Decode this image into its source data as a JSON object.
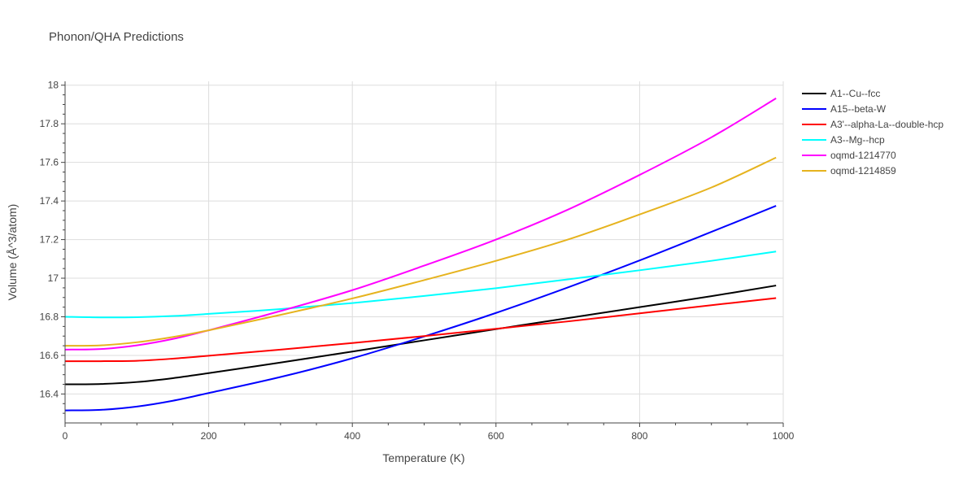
{
  "chart_data": {
    "type": "line",
    "title": "Phonon/QHA Predictions",
    "xlabel": "Temperature (K)",
    "ylabel": "Volume (Å^3/atom)",
    "xlim": [
      0,
      1000
    ],
    "ylim": [
      16.25,
      18.02
    ],
    "xticks": [
      0,
      200,
      400,
      600,
      800,
      1000
    ],
    "xtick_labels": [
      "0",
      "200",
      "400",
      "600",
      "800",
      "1000"
    ],
    "yticks": [
      16.4,
      16.6,
      16.8,
      17.0,
      17.2,
      17.4,
      17.6,
      17.8,
      18.0
    ],
    "ytick_labels": [
      "16.4",
      "16.6",
      "16.8",
      "17",
      "17.2",
      "17.4",
      "17.6",
      "17.8",
      "18"
    ],
    "grid": true,
    "legend_position": "top-right",
    "series": [
      {
        "name": "A1--Cu--fcc",
        "color": "#000000",
        "x": [
          0,
          50,
          100,
          150,
          200,
          300,
          400,
          500,
          600,
          700,
          800,
          900,
          990
        ],
        "y": [
          16.45,
          16.452,
          16.462,
          16.482,
          16.508,
          16.563,
          16.62,
          16.678,
          16.736,
          16.793,
          16.85,
          16.907,
          16.962
        ]
      },
      {
        "name": "A15--beta-W",
        "color": "#0000ff",
        "x": [
          0,
          50,
          100,
          150,
          200,
          300,
          400,
          500,
          600,
          700,
          800,
          900,
          990
        ],
        "y": [
          16.315,
          16.318,
          16.335,
          16.365,
          16.405,
          16.488,
          16.585,
          16.698,
          16.82,
          16.952,
          17.092,
          17.24,
          17.375
        ]
      },
      {
        "name": "A3'--alpha-La--double-hcp",
        "color": "#ff0000",
        "x": [
          0,
          50,
          100,
          150,
          200,
          300,
          400,
          500,
          600,
          700,
          800,
          900,
          990
        ],
        "y": [
          16.57,
          16.57,
          16.572,
          16.583,
          16.598,
          16.63,
          16.664,
          16.7,
          16.738,
          16.776,
          16.818,
          16.86,
          16.897
        ]
      },
      {
        "name": "A3--Mg--hcp",
        "color": "#00ffff",
        "x": [
          0,
          50,
          100,
          150,
          200,
          300,
          400,
          500,
          600,
          700,
          800,
          900,
          990
        ],
        "y": [
          16.8,
          16.797,
          16.798,
          16.804,
          16.815,
          16.84,
          16.871,
          16.908,
          16.948,
          16.994,
          17.041,
          17.09,
          17.138
        ]
      },
      {
        "name": "oqmd-1214770",
        "color": "#ff00ff",
        "x": [
          0,
          50,
          100,
          150,
          200,
          300,
          400,
          500,
          600,
          700,
          800,
          900,
          990
        ],
        "y": [
          16.63,
          16.633,
          16.652,
          16.685,
          16.73,
          16.83,
          16.938,
          17.065,
          17.2,
          17.355,
          17.535,
          17.73,
          17.932
        ]
      },
      {
        "name": "oqmd-1214859",
        "color": "#e6b31e",
        "x": [
          0,
          50,
          100,
          150,
          200,
          300,
          400,
          500,
          600,
          700,
          800,
          900,
          990
        ],
        "y": [
          16.65,
          16.652,
          16.668,
          16.695,
          16.73,
          16.81,
          16.895,
          16.99,
          17.09,
          17.2,
          17.33,
          17.47,
          17.625
        ]
      }
    ]
  }
}
